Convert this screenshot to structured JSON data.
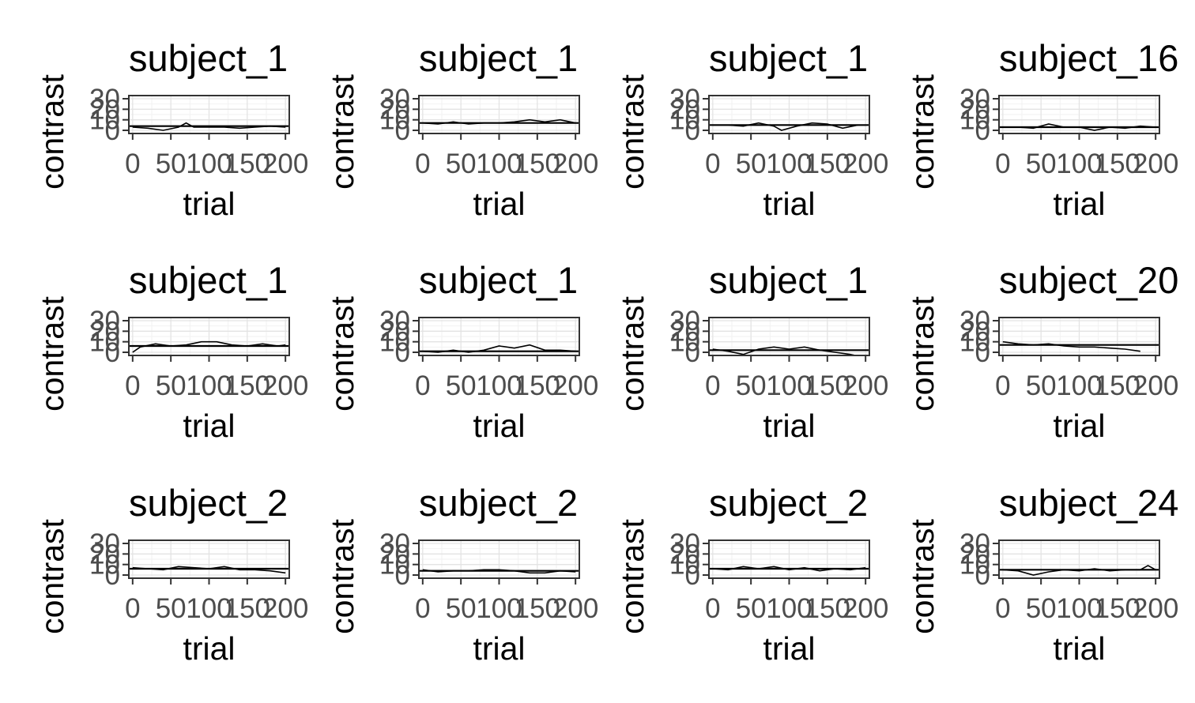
{
  "chart_data": [
    {
      "type": "line",
      "title": "subject_1",
      "xlabel": "trial",
      "ylabel": "contrast",
      "xlim": [
        -5,
        205
      ],
      "ylim": [
        -3,
        33
      ],
      "x_ticks": [
        "0",
        "50",
        "100",
        "150",
        "200"
      ],
      "y_ticks": [
        "0",
        "10",
        "20",
        "30"
      ],
      "y_tick_labels_shown": [
        "0",
        "10",
        "20",
        "30"
      ],
      "hline": 4,
      "x": [
        0,
        20,
        40,
        60,
        70,
        80,
        100,
        120,
        140,
        160,
        180,
        200
      ],
      "y": [
        3,
        2,
        0,
        3,
        7,
        3,
        3,
        3,
        2,
        3,
        4,
        3
      ]
    },
    {
      "type": "line",
      "title": "subject_1",
      "xlabel": "trial",
      "ylabel": "contrast",
      "xlim": [
        -5,
        205
      ],
      "ylim": [
        -3,
        33
      ],
      "x_ticks": [
        "0",
        "50",
        "100",
        "150",
        "200"
      ],
      "y_ticks": [
        "0",
        "10",
        "20",
        "30"
      ],
      "hline": 7,
      "x": [
        0,
        20,
        40,
        60,
        80,
        100,
        120,
        140,
        160,
        180,
        200
      ],
      "y": [
        7,
        6,
        8,
        6,
        7,
        7,
        8,
        10,
        8,
        10,
        7
      ]
    },
    {
      "type": "line",
      "title": "subject_1",
      "xlabel": "trial",
      "ylabel": "contrast",
      "xlim": [
        -5,
        205
      ],
      "ylim": [
        -3,
        33
      ],
      "x_ticks": [
        "0",
        "50",
        "100",
        "150",
        "200"
      ],
      "y_ticks": [
        "0",
        "10",
        "20",
        "30"
      ],
      "hline": 5,
      "x": [
        0,
        20,
        40,
        60,
        80,
        90,
        110,
        130,
        150,
        170,
        190,
        200
      ],
      "y": [
        5,
        5,
        4,
        7,
        4,
        0,
        4,
        7,
        6,
        2,
        5,
        5
      ]
    },
    {
      "type": "line",
      "title": "subject_16",
      "xlabel": "trial",
      "ylabel": "contrast",
      "xlim": [
        -5,
        205
      ],
      "ylim": [
        -3,
        33
      ],
      "x_ticks": [
        "0",
        "50",
        "100",
        "150",
        "200"
      ],
      "y_ticks": [
        "0",
        "10",
        "20",
        "30"
      ],
      "hline": 3,
      "x": [
        0,
        20,
        40,
        60,
        80,
        100,
        120,
        140,
        160,
        180,
        200
      ],
      "y": [
        3,
        3,
        2,
        6,
        3,
        3,
        0,
        3,
        2,
        4,
        3
      ]
    },
    {
      "type": "line",
      "title": "subject_1",
      "xlabel": "trial",
      "ylabel": "contrast",
      "xlim": [
        -5,
        205
      ],
      "ylim": [
        -3,
        33
      ],
      "x_ticks": [
        "0",
        "50",
        "100",
        "150",
        "200"
      ],
      "y_ticks": [
        "0",
        "10",
        "20",
        "30"
      ],
      "hline": 6,
      "x": [
        0,
        10,
        30,
        50,
        70,
        90,
        110,
        130,
        150,
        170,
        190,
        200
      ],
      "y": [
        0,
        5,
        8,
        6,
        7,
        10,
        10,
        7,
        6,
        8,
        6,
        7
      ]
    },
    {
      "type": "line",
      "title": "subject_1",
      "xlabel": "trial",
      "ylabel": "contrast",
      "xlim": [
        -5,
        205
      ],
      "ylim": [
        -3,
        33
      ],
      "x_ticks": [
        "0",
        "50",
        "100",
        "150",
        "200"
      ],
      "y_ticks": [
        "0",
        "10",
        "20",
        "30"
      ],
      "hline": 1,
      "x": [
        0,
        20,
        40,
        60,
        80,
        100,
        120,
        140,
        160,
        180,
        200
      ],
      "y": [
        1,
        0,
        2,
        0,
        2,
        6,
        4,
        7,
        2,
        2,
        1
      ]
    },
    {
      "type": "line",
      "title": "subject_1",
      "xlabel": "trial",
      "ylabel": "contrast",
      "xlim": [
        -5,
        205
      ],
      "ylim": [
        -3,
        33
      ],
      "x_ticks": [
        "0",
        "50",
        "100",
        "150",
        "200"
      ],
      "y_ticks": [
        "0",
        "10",
        "20",
        "30"
      ],
      "hline": 2,
      "x": [
        0,
        20,
        40,
        60,
        80,
        100,
        120,
        140,
        160,
        180,
        200
      ],
      "y": [
        3,
        1,
        -2,
        3,
        5,
        3,
        5,
        2,
        0,
        -2,
        -5
      ]
    },
    {
      "type": "line",
      "title": "subject_20",
      "xlabel": "trial",
      "ylabel": "contrast",
      "xlim": [
        -5,
        205
      ],
      "ylim": [
        -3,
        33
      ],
      "x_ticks": [
        "0",
        "50",
        "100",
        "150",
        "200"
      ],
      "y_ticks": [
        "0",
        "10",
        "20",
        "30"
      ],
      "hline": 7,
      "x": [
        0,
        20,
        40,
        60,
        80,
        100,
        120,
        140,
        160,
        180
      ],
      "y": [
        10,
        8,
        7,
        8,
        6,
        5,
        5,
        4,
        3,
        1
      ]
    },
    {
      "type": "line",
      "title": "subject_2",
      "xlabel": "trial",
      "ylabel": "contrast",
      "xlim": [
        -5,
        205
      ],
      "ylim": [
        -3,
        33
      ],
      "x_ticks": [
        "0",
        "50",
        "100",
        "150",
        "200"
      ],
      "y_ticks": [
        "0",
        "10",
        "20",
        "30"
      ],
      "hline": 6,
      "x": [
        0,
        20,
        40,
        60,
        80,
        100,
        120,
        140,
        160,
        180,
        200
      ],
      "y": [
        7,
        6,
        5,
        8,
        7,
        6,
        8,
        5,
        5,
        4,
        2
      ]
    },
    {
      "type": "line",
      "title": "subject_2",
      "xlabel": "trial",
      "ylabel": "contrast",
      "xlim": [
        -5,
        205
      ],
      "ylim": [
        -3,
        33
      ],
      "x_ticks": [
        "0",
        "50",
        "100",
        "150",
        "200"
      ],
      "y_ticks": [
        "0",
        "10",
        "20",
        "30"
      ],
      "hline": 4,
      "x": [
        0,
        20,
        40,
        60,
        80,
        100,
        120,
        140,
        160,
        180,
        200
      ],
      "y": [
        5,
        3,
        4,
        4,
        5,
        5,
        4,
        2,
        2,
        4,
        3
      ]
    },
    {
      "type": "line",
      "title": "subject_2",
      "xlabel": "trial",
      "ylabel": "contrast",
      "xlim": [
        -5,
        205
      ],
      "ylim": [
        -3,
        33
      ],
      "x_ticks": [
        "0",
        "50",
        "100",
        "150",
        "200"
      ],
      "y_ticks": [
        "0",
        "10",
        "20",
        "30"
      ],
      "hline": 6,
      "x": [
        0,
        20,
        40,
        60,
        80,
        100,
        120,
        140,
        160,
        180,
        200
      ],
      "y": [
        6,
        5,
        8,
        6,
        8,
        5,
        7,
        4,
        6,
        5,
        7
      ]
    },
    {
      "type": "line",
      "title": "subject_24",
      "xlabel": "trial",
      "ylabel": "contrast",
      "xlim": [
        -5,
        205
      ],
      "ylim": [
        -3,
        33
      ],
      "x_ticks": [
        "0",
        "50",
        "100",
        "150",
        "200"
      ],
      "y_ticks": [
        "0",
        "10",
        "20",
        "30"
      ],
      "hline": 5,
      "x": [
        0,
        20,
        40,
        60,
        80,
        100,
        120,
        140,
        160,
        180,
        190,
        200
      ],
      "y": [
        5,
        4,
        0,
        3,
        5,
        4,
        6,
        4,
        5,
        5,
        9,
        5
      ]
    }
  ]
}
